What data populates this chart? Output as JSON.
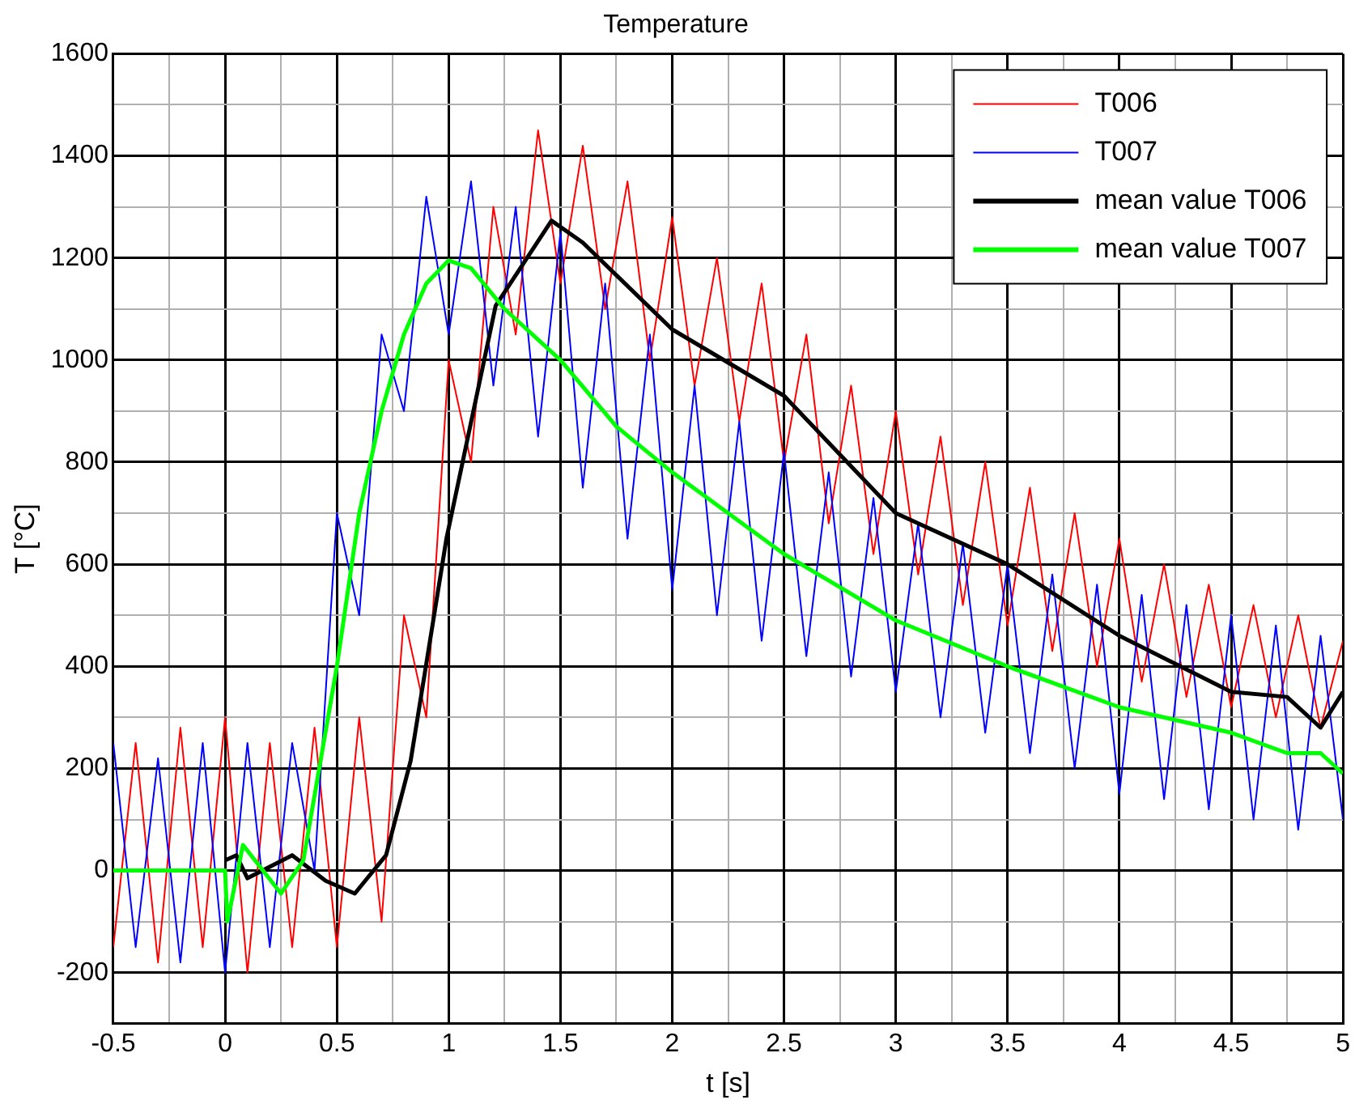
{
  "chart_data": {
    "type": "line",
    "title": "Temperature",
    "xlabel": "t [s]",
    "ylabel": "T [°C]",
    "xlim": [
      -0.5,
      5
    ],
    "ylim": [
      -300,
      1600
    ],
    "xticks": [
      -0.5,
      {
        "value": -0.25,
        "label": null
      },
      0,
      {
        "value": 0.25,
        "label": null
      },
      0.5,
      {
        "value": 0.75,
        "label": null
      },
      1,
      {
        "value": 1.25,
        "label": null
      },
      1.5,
      {
        "value": 1.75,
        "label": null
      },
      2,
      {
        "value": 2.25,
        "label": null
      },
      2.5,
      {
        "value": 2.75,
        "label": null
      },
      3,
      {
        "value": 3.25,
        "label": null
      },
      3.5,
      {
        "value": 3.75,
        "label": null
      },
      4,
      {
        "value": 4.25,
        "label": null
      },
      4.5,
      {
        "value": 4.75,
        "label": null
      },
      5
    ],
    "yticks": [
      {
        "value": -300,
        "label": null
      },
      -200,
      {
        "value": -100,
        "label": null
      },
      0,
      {
        "value": 100,
        "label": null
      },
      200,
      {
        "value": 300,
        "label": null
      },
      400,
      {
        "value": 500,
        "label": null
      },
      600,
      {
        "value": 700,
        "label": null
      },
      800,
      {
        "value": 900,
        "label": null
      },
      1000,
      {
        "value": 1100,
        "label": null
      },
      1200,
      {
        "value": 1300,
        "label": null
      },
      1400,
      {
        "value": 1500,
        "label": null
      },
      1600
    ],
    "grid": true,
    "legend": "top right",
    "marker": "none",
    "x": [
      -0.5,
      -0.4,
      -0.3,
      -0.2,
      -0.1,
      0,
      0.1,
      0.2,
      0.3,
      0.4,
      0.5,
      0.6,
      0.7,
      0.8,
      0.9,
      1,
      1.1,
      1.2,
      1.3,
      1.4,
      1.5,
      1.6,
      1.7,
      1.8,
      1.9,
      2,
      2.1,
      2.2,
      2.3,
      2.4,
      2.5,
      2.6,
      2.7,
      2.8,
      2.9,
      3,
      3.1,
      3.2,
      3.3,
      3.4,
      3.5,
      3.6,
      3.7,
      3.8,
      3.9,
      4,
      4.1,
      4.2,
      4.3,
      4.4,
      4.5,
      4.6,
      4.7,
      4.8,
      4.9,
      5
    ],
    "series": [
      {
        "name": "T006",
        "color": "#ff0000",
        "values": [
          -150,
          250,
          -180,
          280,
          -150,
          300,
          -200,
          250,
          -150,
          280,
          -150,
          300,
          -100,
          500,
          300,
          1000,
          800,
          1300,
          1050,
          1450,
          1150,
          1420,
          1100,
          1350,
          1000,
          1280,
          950,
          1200,
          880,
          1150,
          800,
          1050,
          680,
          950,
          620,
          900,
          580,
          850,
          520,
          800,
          480,
          750,
          430,
          700,
          400,
          650,
          370,
          600,
          340,
          560,
          320,
          520,
          300,
          500,
          280,
          450
        ]
      },
      {
        "name": "T007",
        "color": "#0000ff",
        "values": [
          250,
          -150,
          220,
          -180,
          250,
          -200,
          250,
          -150,
          250,
          0,
          700,
          500,
          1050,
          900,
          1320,
          1050,
          1350,
          950,
          1300,
          850,
          1250,
          750,
          1150,
          650,
          1050,
          550,
          950,
          500,
          880,
          450,
          820,
          420,
          780,
          380,
          730,
          350,
          680,
          300,
          640,
          270,
          600,
          230,
          580,
          200,
          560,
          150,
          540,
          140,
          520,
          120,
          500,
          100,
          480,
          80,
          460,
          100
        ]
      },
      {
        "name": "mean value T006",
        "color": "#000000",
        "x": [
          0,
          0.05,
          0.1,
          0.3,
          0.45,
          0.58,
          0.72,
          0.83,
          0.99,
          1.21,
          1.46,
          1.6,
          2,
          2.5,
          3,
          3.5,
          4,
          4.5,
          4.75,
          4.9,
          5
        ],
        "values": [
          20,
          30,
          -15,
          30,
          -20,
          -45,
          30,
          215,
          650,
          1106,
          1273,
          1230,
          1060,
          930,
          700,
          600,
          460,
          350,
          340,
          280,
          350
        ]
      },
      {
        "name": "mean value T007",
        "color": "#00ff00",
        "x": [
          -0.5,
          0,
          0.01,
          0.08,
          0.25,
          0.35,
          0.5,
          0.6,
          0.7,
          0.8,
          0.9,
          1,
          1.1,
          1.25,
          1.5,
          1.75,
          2,
          2.5,
          3,
          3.5,
          4,
          4.5,
          4.75,
          4.9,
          5
        ],
        "values": [
          0,
          0,
          -100,
          50,
          -45,
          20,
          400,
          700,
          900,
          1050,
          1150,
          1195,
          1180,
          1100,
          1000,
          870,
          780,
          620,
          490,
          400,
          320,
          270,
          230,
          230,
          190
        ]
      }
    ]
  }
}
